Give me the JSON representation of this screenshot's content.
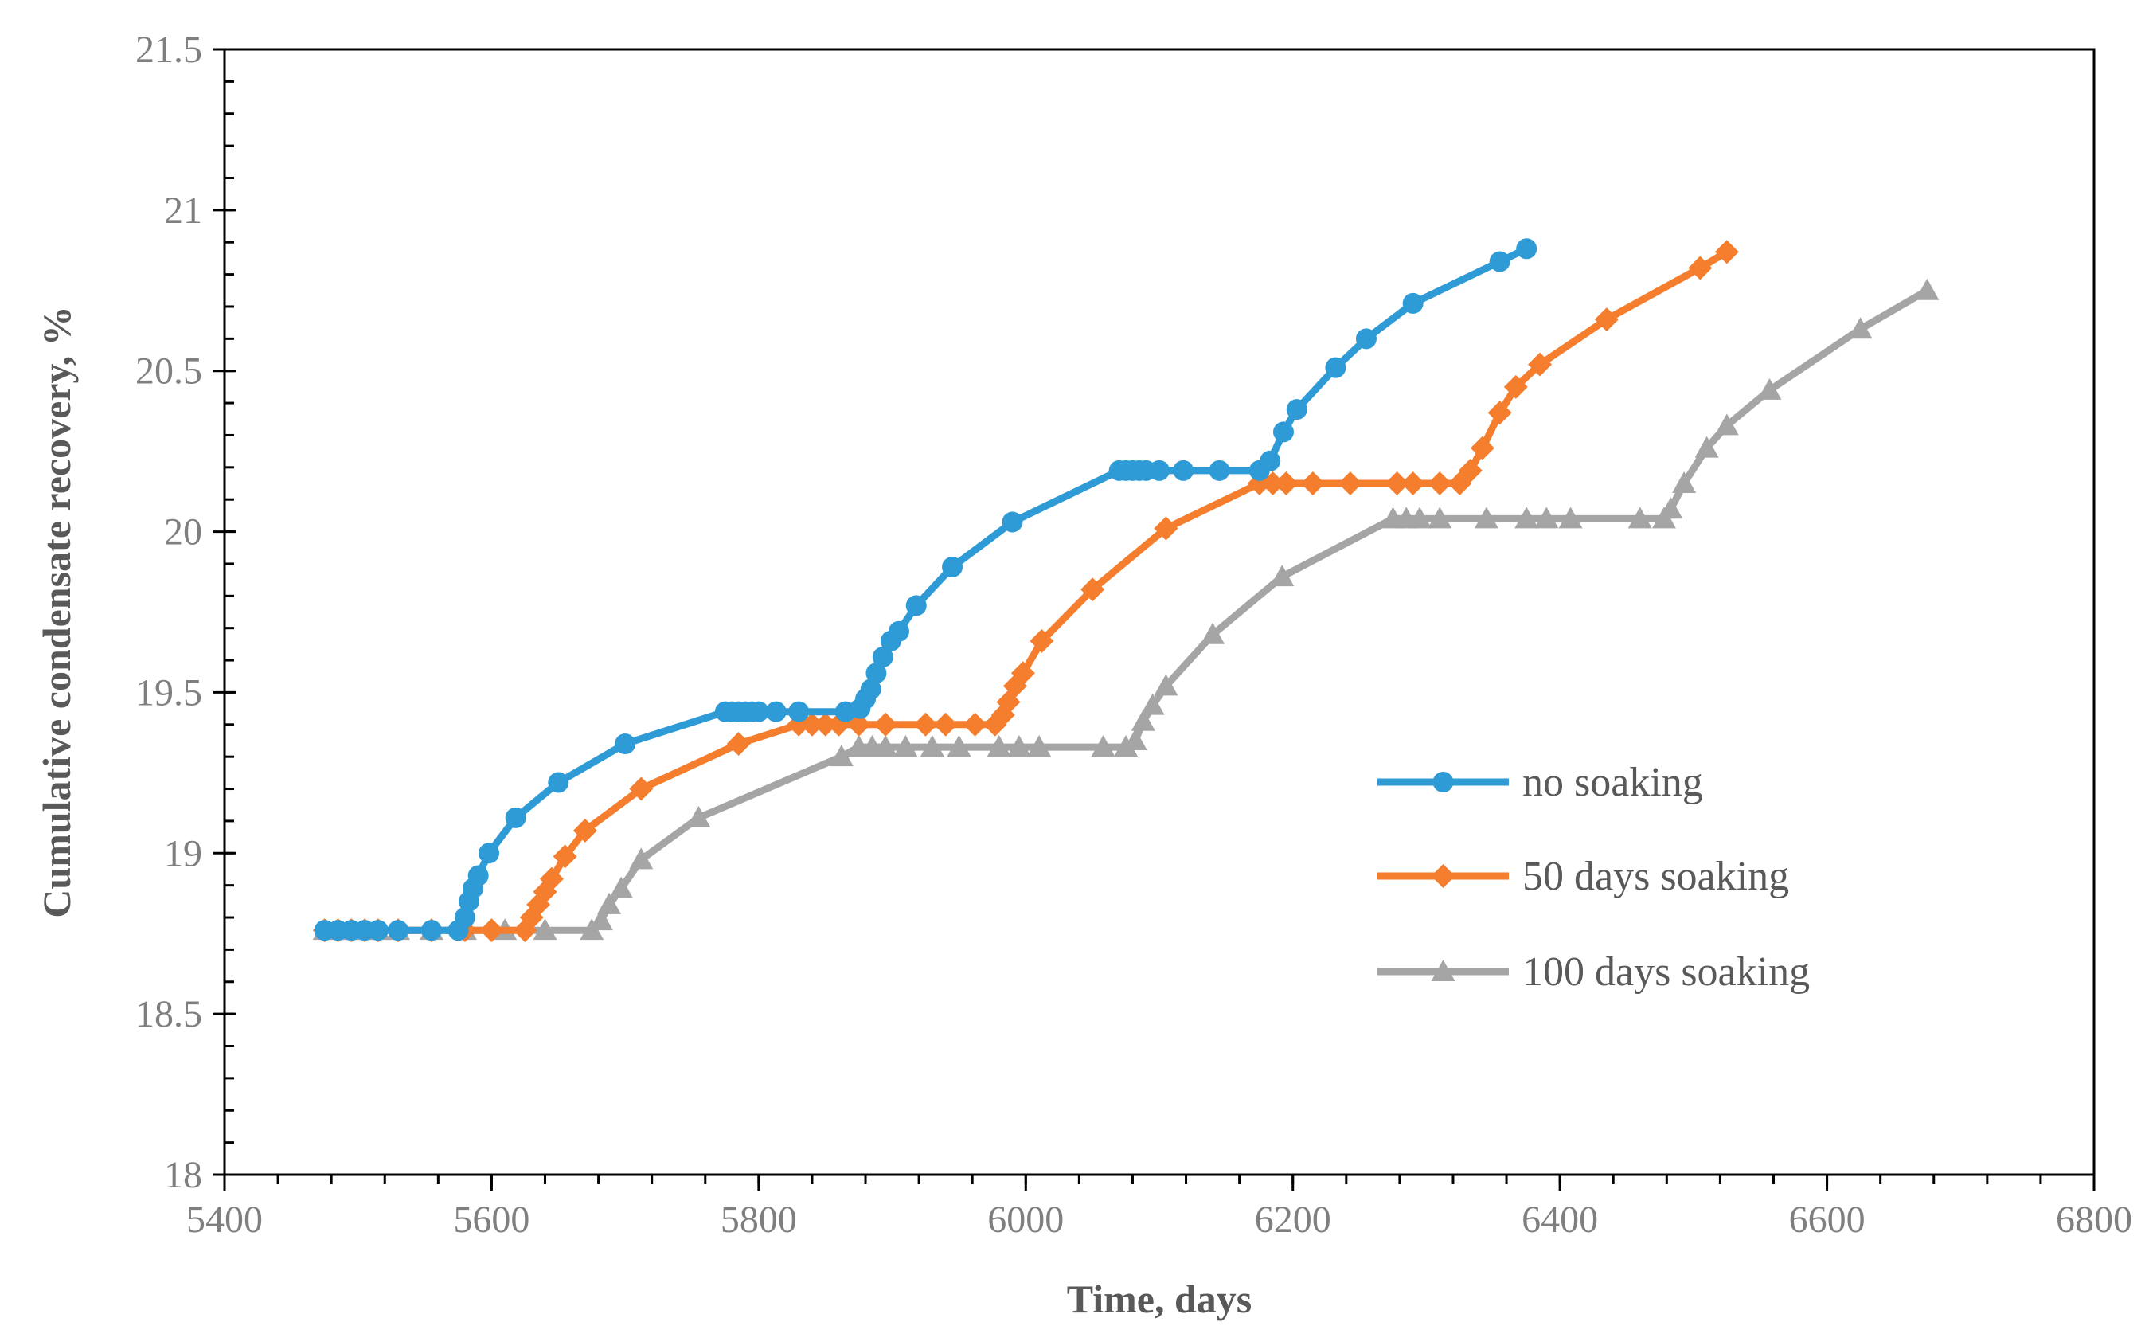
{
  "chart_data": {
    "type": "line",
    "title": "",
    "xlabel": "Time, days",
    "ylabel": "Cumulative condensate recovery, %",
    "xlim": [
      5400,
      6800
    ],
    "ylim": [
      18,
      21.5
    ],
    "x_ticks": [
      5400,
      5600,
      5800,
      6000,
      6200,
      6400,
      6600,
      6800
    ],
    "y_ticks": [
      "18",
      "18.5",
      "19",
      "19.5",
      "20",
      "20.5",
      "21",
      "21.5"
    ],
    "x_minor_step": 40,
    "y_minor_step": 0.1,
    "grid": false,
    "legend_position": "right",
    "series": [
      {
        "name": "no soaking",
        "color": "#2f9bd6",
        "marker": "circle",
        "points": [
          [
            5475,
            18.76
          ],
          [
            5485,
            18.76
          ],
          [
            5495,
            18.76
          ],
          [
            5505,
            18.76
          ],
          [
            5515,
            18.76
          ],
          [
            5530,
            18.76
          ],
          [
            5555,
            18.76
          ],
          [
            5575,
            18.76
          ],
          [
            5580,
            18.8
          ],
          [
            5583,
            18.85
          ],
          [
            5586,
            18.89
          ],
          [
            5590,
            18.93
          ],
          [
            5598,
            19.0
          ],
          [
            5618,
            19.11
          ],
          [
            5650,
            19.22
          ],
          [
            5700,
            19.34
          ],
          [
            5775,
            19.44
          ],
          [
            5780,
            19.44
          ],
          [
            5785,
            19.44
          ],
          [
            5790,
            19.44
          ],
          [
            5795,
            19.44
          ],
          [
            5800,
            19.44
          ],
          [
            5813,
            19.44
          ],
          [
            5830,
            19.44
          ],
          [
            5865,
            19.44
          ],
          [
            5876,
            19.45
          ],
          [
            5880,
            19.48
          ],
          [
            5884,
            19.51
          ],
          [
            5888,
            19.56
          ],
          [
            5893,
            19.61
          ],
          [
            5899,
            19.66
          ],
          [
            5905,
            19.69
          ],
          [
            5918,
            19.77
          ],
          [
            5945,
            19.89
          ],
          [
            5990,
            20.03
          ],
          [
            6070,
            20.19
          ],
          [
            6075,
            20.19
          ],
          [
            6080,
            20.19
          ],
          [
            6085,
            20.19
          ],
          [
            6090,
            20.19
          ],
          [
            6100,
            20.19
          ],
          [
            6118,
            20.19
          ],
          [
            6145,
            20.19
          ],
          [
            6175,
            20.19
          ],
          [
            6183,
            20.22
          ],
          [
            6193,
            20.31
          ],
          [
            6203,
            20.38
          ],
          [
            6232,
            20.51
          ],
          [
            6255,
            20.6
          ],
          [
            6290,
            20.71
          ],
          [
            6355,
            20.84
          ],
          [
            6375,
            20.88
          ]
        ]
      },
      {
        "name": "50 days soaking",
        "color": "#f47e2d",
        "marker": "diamond",
        "points": [
          [
            5475,
            18.76
          ],
          [
            5485,
            18.76
          ],
          [
            5495,
            18.76
          ],
          [
            5505,
            18.76
          ],
          [
            5515,
            18.76
          ],
          [
            5530,
            18.76
          ],
          [
            5555,
            18.76
          ],
          [
            5580,
            18.76
          ],
          [
            5600,
            18.76
          ],
          [
            5625,
            18.76
          ],
          [
            5630,
            18.8
          ],
          [
            5635,
            18.84
          ],
          [
            5640,
            18.88
          ],
          [
            5645,
            18.92
          ],
          [
            5655,
            18.99
          ],
          [
            5670,
            19.07
          ],
          [
            5712,
            19.2
          ],
          [
            5785,
            19.34
          ],
          [
            5830,
            19.4
          ],
          [
            5840,
            19.4
          ],
          [
            5850,
            19.4
          ],
          [
            5860,
            19.4
          ],
          [
            5875,
            19.4
          ],
          [
            5895,
            19.4
          ],
          [
            5925,
            19.4
          ],
          [
            5940,
            19.4
          ],
          [
            5962,
            19.4
          ],
          [
            5977,
            19.4
          ],
          [
            5983,
            19.43
          ],
          [
            5987,
            19.47
          ],
          [
            5992,
            19.52
          ],
          [
            5998,
            19.56
          ],
          [
            6012,
            19.66
          ],
          [
            6050,
            19.82
          ],
          [
            6105,
            20.01
          ],
          [
            6175,
            20.15
          ],
          [
            6185,
            20.15
          ],
          [
            6195,
            20.15
          ],
          [
            6215,
            20.15
          ],
          [
            6243,
            20.15
          ],
          [
            6278,
            20.15
          ],
          [
            6290,
            20.15
          ],
          [
            6310,
            20.15
          ],
          [
            6325,
            20.15
          ],
          [
            6333,
            20.19
          ],
          [
            6342,
            20.26
          ],
          [
            6355,
            20.37
          ],
          [
            6367,
            20.45
          ],
          [
            6385,
            20.52
          ],
          [
            6435,
            20.66
          ],
          [
            6505,
            20.82
          ],
          [
            6525,
            20.87
          ]
        ]
      },
      {
        "name": "100 days soaking",
        "color": "#a5a5a5",
        "marker": "triangle",
        "points": [
          [
            5475,
            18.76
          ],
          [
            5485,
            18.76
          ],
          [
            5495,
            18.76
          ],
          [
            5505,
            18.76
          ],
          [
            5515,
            18.76
          ],
          [
            5530,
            18.76
          ],
          [
            5555,
            18.76
          ],
          [
            5580,
            18.76
          ],
          [
            5610,
            18.76
          ],
          [
            5640,
            18.76
          ],
          [
            5675,
            18.76
          ],
          [
            5682,
            18.79
          ],
          [
            5688,
            18.84
          ],
          [
            5697,
            18.89
          ],
          [
            5712,
            18.98
          ],
          [
            5755,
            19.11
          ],
          [
            5862,
            19.3
          ],
          [
            5875,
            19.33
          ],
          [
            5885,
            19.33
          ],
          [
            5895,
            19.33
          ],
          [
            5910,
            19.33
          ],
          [
            5930,
            19.33
          ],
          [
            5950,
            19.33
          ],
          [
            5980,
            19.33
          ],
          [
            5995,
            19.33
          ],
          [
            6010,
            19.33
          ],
          [
            6058,
            19.33
          ],
          [
            6075,
            19.33
          ],
          [
            6082,
            19.35
          ],
          [
            6088,
            19.41
          ],
          [
            6095,
            19.46
          ],
          [
            6105,
            19.52
          ],
          [
            6140,
            19.68
          ],
          [
            6192,
            19.86
          ],
          [
            6275,
            20.04
          ],
          [
            6285,
            20.04
          ],
          [
            6295,
            20.04
          ],
          [
            6310,
            20.04
          ],
          [
            6345,
            20.04
          ],
          [
            6375,
            20.04
          ],
          [
            6390,
            20.04
          ],
          [
            6408,
            20.04
          ],
          [
            6460,
            20.04
          ],
          [
            6478,
            20.04
          ],
          [
            6483,
            20.07
          ],
          [
            6493,
            20.15
          ],
          [
            6510,
            20.26
          ],
          [
            6525,
            20.33
          ],
          [
            6557,
            20.44
          ],
          [
            6625,
            20.63
          ],
          [
            6675,
            20.75
          ]
        ]
      }
    ]
  }
}
